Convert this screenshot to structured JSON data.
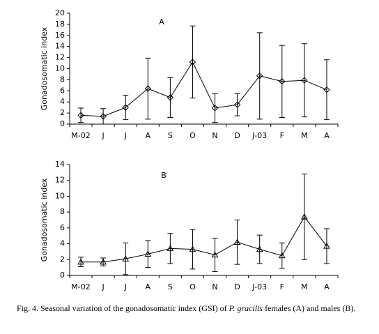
{
  "chart_data": [
    {
      "type": "line",
      "annotation": "A",
      "y_label": "Gonadosomatic index",
      "marker": "diamond",
      "color": "#000000",
      "categories": [
        "M-02",
        "J",
        "J",
        "A",
        "S",
        "O",
        "N",
        "D",
        "J-03",
        "F",
        "M",
        "A"
      ],
      "values": [
        1.6,
        1.4,
        3.0,
        6.4,
        4.8,
        11.2,
        2.9,
        3.5,
        8.7,
        7.7,
        7.9,
        6.2
      ],
      "errors": [
        1.3,
        1.4,
        2.2,
        5.5,
        3.6,
        6.5,
        2.6,
        2.0,
        7.8,
        6.5,
        6.6,
        5.4
      ],
      "ylim": [
        0,
        20
      ],
      "yticks": [
        0,
        2,
        4,
        6,
        8,
        10,
        12,
        14,
        16,
        18,
        20
      ]
    },
    {
      "type": "line",
      "annotation": "B",
      "y_label": "Gonadosomatic index",
      "marker": "triangle",
      "color": "#000000",
      "categories": [
        "M-02",
        "J",
        "J",
        "A",
        "S",
        "O",
        "N",
        "D",
        "J-03",
        "F",
        "M",
        "A"
      ],
      "values": [
        1.7,
        1.7,
        2.1,
        2.7,
        3.4,
        3.3,
        2.6,
        4.2,
        3.3,
        2.5,
        7.4,
        3.7
      ],
      "errors": [
        0.6,
        0.5,
        2.0,
        1.7,
        1.9,
        2.5,
        2.1,
        2.8,
        1.8,
        1.6,
        5.4,
        2.2
      ],
      "ylim": [
        0,
        14
      ],
      "yticks": [
        0,
        2,
        4,
        6,
        8,
        10,
        12,
        14
      ]
    }
  ],
  "caption": [
    "Fig. 4. Seasonal variation of the gonadosomatic index (GSI) of ",
    "P. gracilis",
    " females (A) and males (B)."
  ]
}
